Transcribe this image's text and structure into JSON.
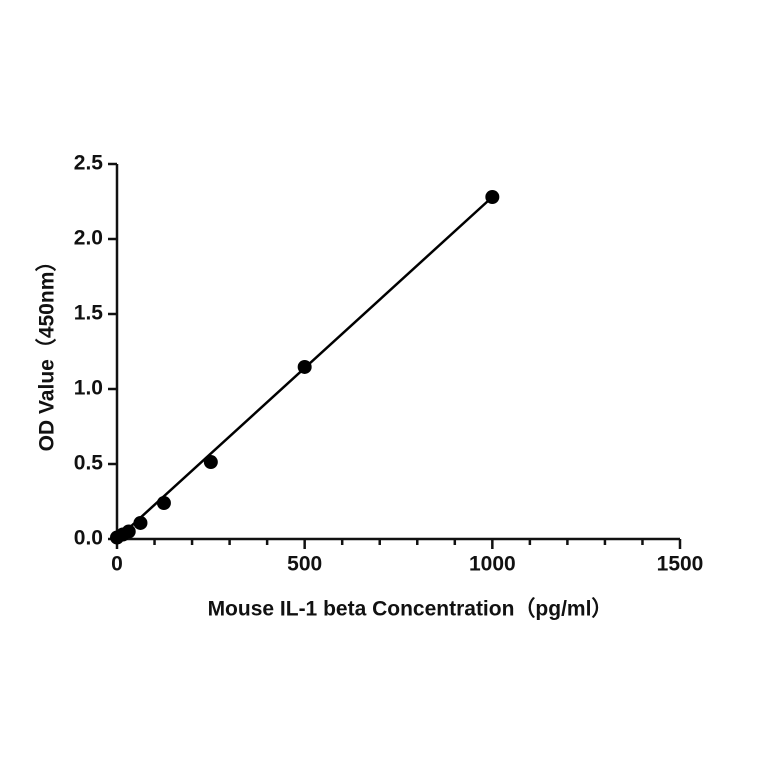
{
  "chart_data": {
    "type": "scatter",
    "x_label": "Mouse IL-1 beta  Concentration（pg/ml）",
    "y_label": "OD Value（450nm）",
    "series": [
      {
        "x": [
          0,
          15.6,
          31.25,
          62.5,
          125,
          250,
          500,
          1000
        ],
        "values": [
          0.01,
          0.03,
          0.05,
          0.107,
          0.24,
          0.513,
          1.147,
          2.28
        ],
        "color": "#000000"
      }
    ],
    "fit_line": {
      "x": [
        0,
        1000
      ],
      "values": [
        0.0,
        2.28
      ],
      "color": "#000000"
    },
    "xlim": [
      0,
      1500
    ],
    "ylim": [
      0,
      2.5
    ],
    "xticks": [
      0,
      500,
      1000,
      1500
    ],
    "xminorticks": [
      100,
      200,
      300,
      400,
      600,
      700,
      800,
      900,
      1100,
      1200,
      1300,
      1400
    ],
    "yticks": [
      {
        "value": 0,
        "label": "0.0"
      },
      {
        "value": 0.5,
        "label": "0.5"
      },
      {
        "value": 1,
        "label": "1.0"
      },
      {
        "value": 1.5,
        "label": "1.5"
      },
      {
        "value": 2,
        "label": "2.0"
      },
      {
        "value": 2.5,
        "label": "2.5"
      }
    ]
  }
}
